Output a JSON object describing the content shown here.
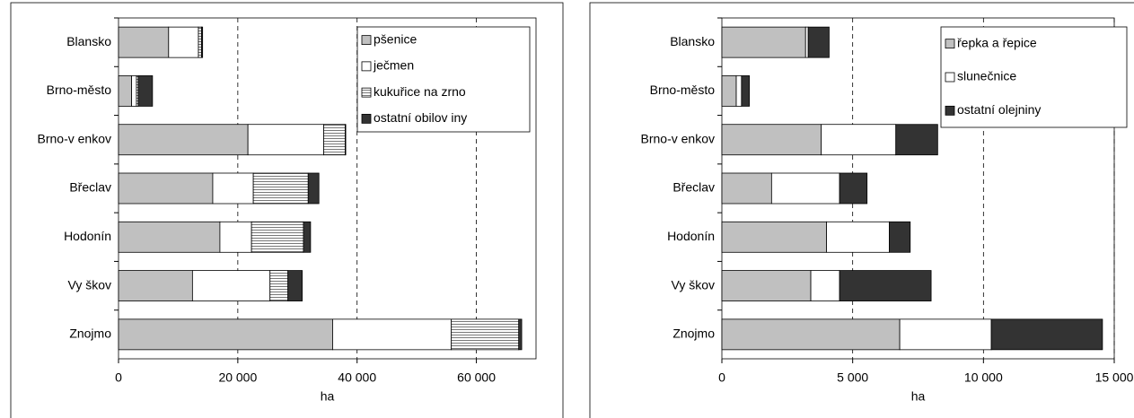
{
  "chart_data": [
    {
      "type": "bar",
      "orientation": "horizontal",
      "stacked": true,
      "xlabel": "ha",
      "categories": [
        "Blansko",
        "Brno-město",
        "Brno-v enkov",
        "Břeclav",
        "Hodonín",
        "Vy škov",
        "Znojmo"
      ],
      "series": [
        {
          "name": "pšenice",
          "color": "#c0c0c0",
          "values": [
            8400,
            2200,
            21700,
            15800,
            17000,
            12400,
            35900
          ]
        },
        {
          "name": "ječmen",
          "color": "#ffffff",
          "values": [
            5000,
            800,
            12700,
            6800,
            5300,
            13000,
            19900
          ]
        },
        {
          "name": "kukuřice na zrno",
          "color": "#ffffff",
          "pattern": "horizontal-lines",
          "values": [
            500,
            300,
            3600,
            9200,
            8700,
            3000,
            11300
          ]
        },
        {
          "name": "ostatní obilov iny",
          "color": "#333333",
          "values": [
            200,
            2400,
            100,
            1800,
            1200,
            2400,
            500
          ]
        }
      ],
      "xlim": [
        0,
        70000
      ],
      "xticks": [
        0,
        {
          "value": 20000,
          "label": "20 000"
        },
        {
          "value": 40000,
          "label": "40 000"
        },
        {
          "value": 60000,
          "label": "60 000"
        }
      ],
      "grid": true,
      "legend": "upper right"
    },
    {
      "type": "bar",
      "orientation": "horizontal",
      "stacked": true,
      "xlabel": "ha",
      "categories": [
        "Blansko",
        "Brno-město",
        "Brno-v enkov",
        "Břeclav",
        "Hodonín",
        "Vy škov",
        "Znojmo"
      ],
      "series": [
        {
          "name": "řepka a řepice",
          "color": "#c0c0c0",
          "values": [
            3200,
            550,
            3800,
            1900,
            4000,
            3400,
            6800
          ]
        },
        {
          "name": "slunečnice",
          "color": "#ffffff",
          "values": [
            100,
            200,
            2850,
            2600,
            2400,
            1100,
            3500
          ]
        },
        {
          "name": "ostatní olejniny",
          "color": "#333333",
          "values": [
            800,
            300,
            1600,
            1050,
            800,
            3500,
            4250
          ]
        }
      ],
      "xlim": [
        0,
        15000
      ],
      "xticks": [
        0,
        {
          "value": 5000,
          "label": "5 000"
        },
        {
          "value": 10000,
          "label": "10 000"
        },
        {
          "value": 15000,
          "label": "15 000"
        }
      ],
      "grid": true,
      "legend": "upper right"
    }
  ]
}
